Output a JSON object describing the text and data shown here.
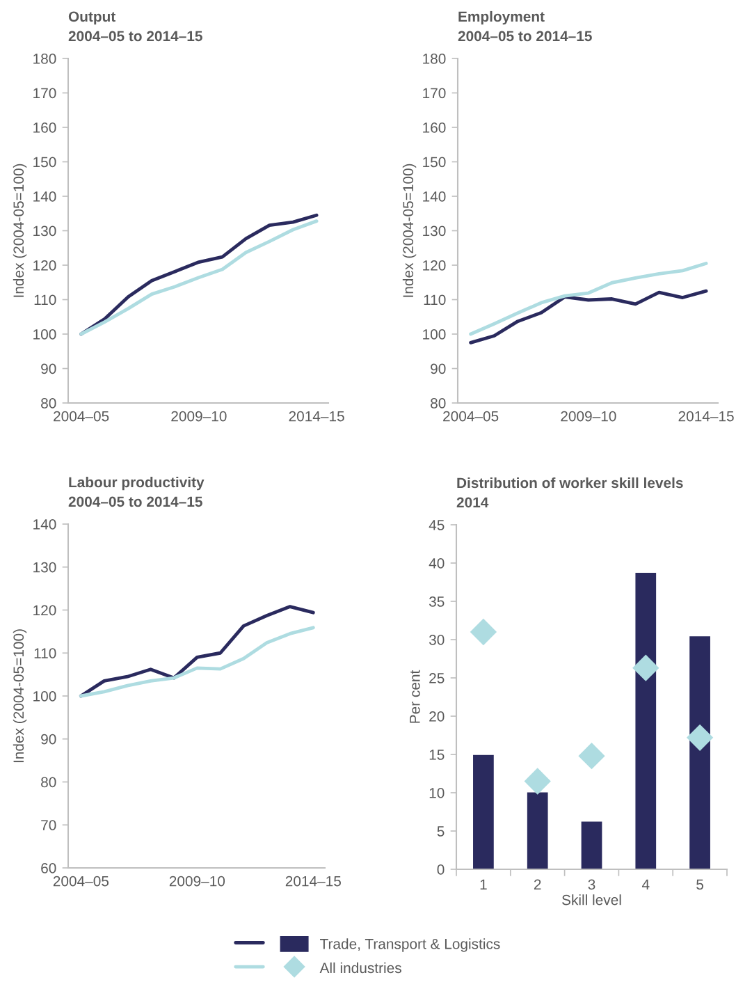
{
  "chart_data": [
    {
      "type": "line",
      "title": "Output",
      "subtitle": "2004–05 to 2014–15",
      "ylabel": "Index (2004-05=100)",
      "categories": [
        "2004–05",
        null,
        null,
        null,
        null,
        "2009–10",
        null,
        null,
        null,
        null,
        "2014–15"
      ],
      "ylim": [
        80,
        180
      ],
      "yticks": [
        80,
        90,
        100,
        110,
        120,
        130,
        140,
        150,
        160,
        170,
        180
      ],
      "series": [
        {
          "color": "#2a2a5e",
          "values": [
            100,
            104.4,
            110.8,
            115.5,
            118.2,
            120.9,
            122.4,
            127.7,
            131.6,
            132.5,
            134.5
          ]
        },
        {
          "color": "#aedce1",
          "values": [
            100,
            103.5,
            107.4,
            111.6,
            113.8,
            116.4,
            118.8,
            123.7,
            126.9,
            130.3,
            132.8
          ]
        }
      ]
    },
    {
      "type": "line",
      "title": "Employment",
      "subtitle": "2004–05 to 2014–15",
      "ylabel": "Index (2004-05=100)",
      "categories": [
        "2004–05",
        null,
        null,
        null,
        null,
        "2009–10",
        null,
        null,
        null,
        null,
        "2014–15"
      ],
      "ylim": [
        80,
        180
      ],
      "yticks": [
        80,
        90,
        100,
        110,
        120,
        130,
        140,
        150,
        160,
        170,
        180
      ],
      "series": [
        {
          "color": "#2a2a5e",
          "values": [
            97.5,
            99.5,
            103.7,
            106.2,
            110.8,
            109.9,
            110.2,
            108.7,
            112.1,
            110.6,
            112.5
          ]
        },
        {
          "color": "#aedce1",
          "values": [
            100,
            103.0,
            106.1,
            109.1,
            111.1,
            111.9,
            114.9,
            116.3,
            117.5,
            118.4,
            120.5
          ]
        }
      ]
    },
    {
      "type": "line",
      "title": "Labour productivity",
      "subtitle": "2004–05 to 2014–15",
      "ylabel": "Index (2004-05=100)",
      "categories": [
        "2004–05",
        null,
        null,
        null,
        null,
        "2009–10",
        null,
        null,
        null,
        null,
        "2014–15"
      ],
      "ylim": [
        60,
        140
      ],
      "yticks": [
        60,
        70,
        80,
        90,
        100,
        110,
        120,
        130,
        140
      ],
      "series": [
        {
          "color": "#2a2a5e",
          "values": [
            100,
            103.5,
            104.5,
            106.2,
            104.2,
            109.0,
            110.0,
            116.3,
            118.7,
            120.8,
            119.4
          ]
        },
        {
          "color": "#aedce1",
          "values": [
            100,
            101.0,
            102.4,
            103.5,
            104.2,
            106.5,
            106.3,
            108.7,
            112.4,
            114.5,
            115.9
          ]
        }
      ]
    },
    {
      "type": "bar",
      "title": "Distribution of worker skill levels",
      "subtitle": "2014",
      "xlabel": "Skill level",
      "ylabel": "Per cent",
      "categories": [
        "1",
        "2",
        "3",
        "4",
        "5"
      ],
      "ylim": [
        0,
        45
      ],
      "yticks": [
        0,
        5,
        10,
        15,
        20,
        25,
        30,
        35,
        40,
        45
      ],
      "marker": "diamond",
      "legend": "bottom",
      "series": [
        {
          "name": "Trade, Transport & Logistics",
          "color": "#2a2a5e",
          "values": [
            15.0,
            10.1,
            6.3,
            38.8,
            30.5
          ]
        },
        {
          "name": "All industries",
          "type": "scatter",
          "color": "#aedce1",
          "values": [
            31.0,
            11.5,
            14.8,
            26.3,
            17.2
          ]
        }
      ]
    }
  ]
}
